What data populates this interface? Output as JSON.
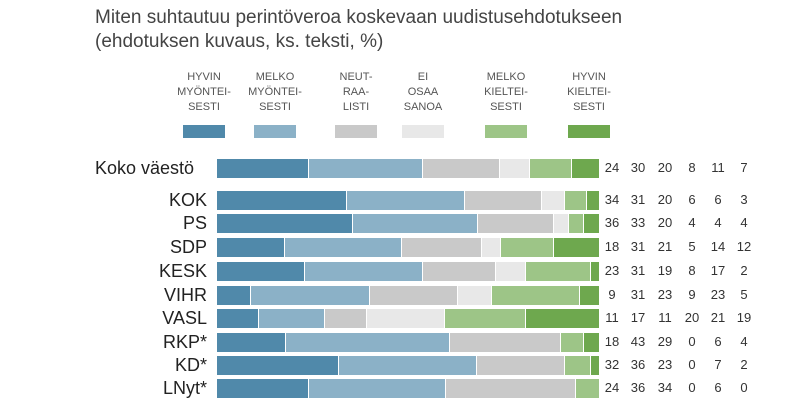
{
  "chart_data": {
    "type": "bar",
    "orientation": "horizontal-stacked-100",
    "title": "Miten suhtautuu perintöveroa koskevaan uudistusehdotukseen\n(ehdotuksen kuvaus, ks. teksti, %)",
    "legend": [
      {
        "name": "HYVIN\nMYÖNTEI-\nSESTI",
        "color": "#5089aa"
      },
      {
        "name": "MELKO\nMYÖNTEI-\nSESTI",
        "color": "#8bb1c7"
      },
      {
        "name": "NEUT-\nRAA-\nLISTI",
        "color": "#c9c9c9"
      },
      {
        "name": "EI\nOSAA\nSANOA",
        "color": "#e8e8e8"
      },
      {
        "name": "MELKO\nKIELTEI-\nSESTI",
        "color": "#9dc587"
      },
      {
        "name": "HYVIN\nKIELTEI-\nSESTI",
        "color": "#6ea84e"
      }
    ],
    "categories": [
      "Koko väestö",
      "KOK",
      "PS",
      "SDP",
      "KESK",
      "VIHR",
      "VASL",
      "RKP*",
      "KD*",
      "LNyt*"
    ],
    "rows": [
      {
        "label": "Koko väestö",
        "values": [
          24,
          30,
          20,
          8,
          11,
          7
        ]
      },
      {
        "label": "KOK",
        "values": [
          34,
          31,
          20,
          6,
          6,
          3
        ]
      },
      {
        "label": "PS",
        "values": [
          36,
          33,
          20,
          4,
          4,
          4
        ]
      },
      {
        "label": "SDP",
        "values": [
          18,
          31,
          21,
          5,
          14,
          12
        ]
      },
      {
        "label": "KESK",
        "values": [
          23,
          31,
          19,
          8,
          17,
          2
        ]
      },
      {
        "label": "VIHR",
        "values": [
          9,
          31,
          23,
          9,
          23,
          5
        ]
      },
      {
        "label": "VASL",
        "values": [
          11,
          17,
          11,
          20,
          21,
          19
        ]
      },
      {
        "label": "RKP*",
        "values": [
          18,
          43,
          29,
          0,
          6,
          4
        ]
      },
      {
        "label": "KD*",
        "values": [
          32,
          36,
          23,
          0,
          7,
          2
        ]
      },
      {
        "label": "LNyt*",
        "values": [
          24,
          36,
          34,
          0,
          6,
          0
        ]
      }
    ]
  }
}
